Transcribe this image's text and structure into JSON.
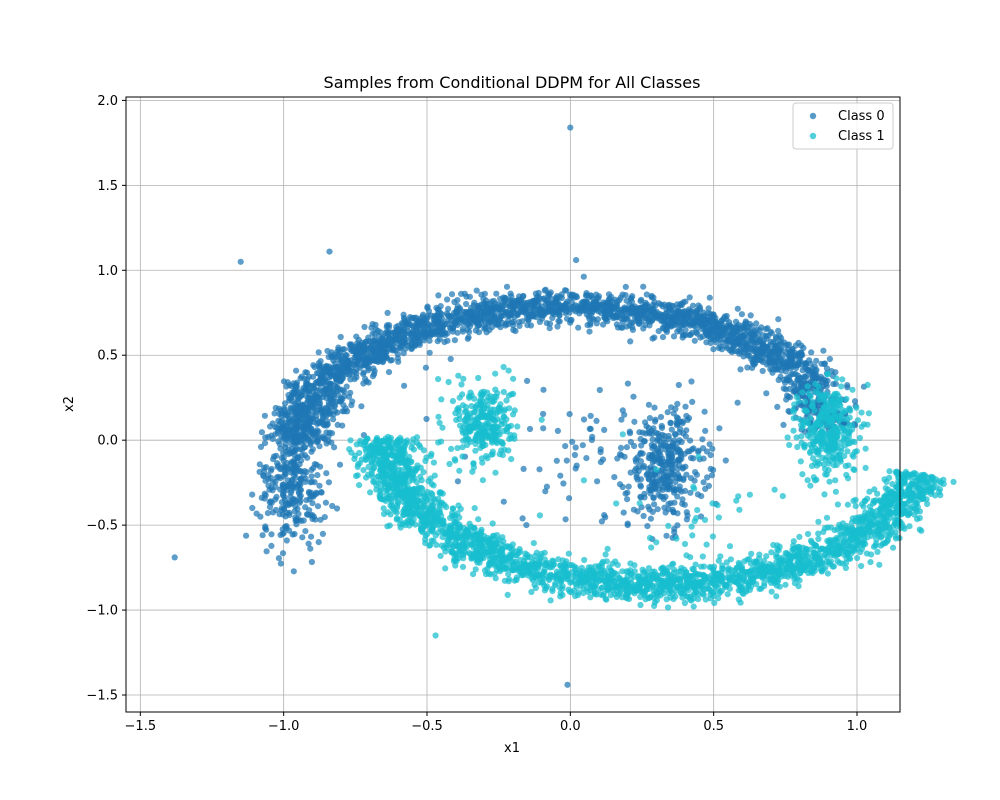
{
  "chart_data": {
    "type": "scatter",
    "title": "Samples from Conditional DDPM for All Classes",
    "xlabel": "x1",
    "ylabel": "x2",
    "xlim": [
      -1.55,
      1.15
    ],
    "ylim": [
      -1.6,
      2.02
    ],
    "xticks": [
      -1.5,
      -1.0,
      -0.5,
      0.0,
      0.5,
      1.0
    ],
    "yticks": [
      -1.5,
      -1.0,
      -0.5,
      0.0,
      0.5,
      1.0,
      1.5,
      2.0
    ],
    "xtick_labels": [
      "−1.5",
      "−1.0",
      "−0.5",
      "0.0",
      "0.5",
      "1.0"
    ],
    "ytick_labels": [
      "−1.5",
      "−1.0",
      "−0.5",
      "0.0",
      "0.5",
      "1.0",
      "1.5",
      "2.0"
    ],
    "grid": true,
    "legend_position": "top-right",
    "series": [
      {
        "name": "Class 0",
        "color": "#1f77b4",
        "shape": "upper half-moon arc, center (0, 0), radius ~0.95, from x=-1.0 to x=0.35",
        "outliers": [
          [
            -1.15,
            1.05
          ],
          [
            -0.84,
            1.11
          ],
          [
            0.0,
            1.84
          ],
          [
            0.02,
            1.06
          ],
          [
            -1.38,
            -0.69
          ],
          [
            -0.01,
            -1.44
          ],
          [
            0.52,
            0.07
          ],
          [
            -0.58,
            0.32
          ],
          [
            -0.72,
            0.03
          ],
          [
            0.2,
            -0.5
          ]
        ]
      },
      {
        "name": "Class 1",
        "color": "#17becf",
        "shape": "lower half-moon arc, center (0.3, 0), radius ~0.95, from x=-0.3 to x=0.95",
        "outliers": [
          [
            -0.47,
            -1.15
          ],
          [
            -0.33,
            -0.76
          ],
          [
            1.03,
            -0.05
          ],
          [
            0.13,
            -0.64
          ],
          [
            -0.1,
            0.12
          ],
          [
            0.37,
            -0.58
          ],
          [
            -0.45,
            0.24
          ]
        ]
      }
    ]
  }
}
